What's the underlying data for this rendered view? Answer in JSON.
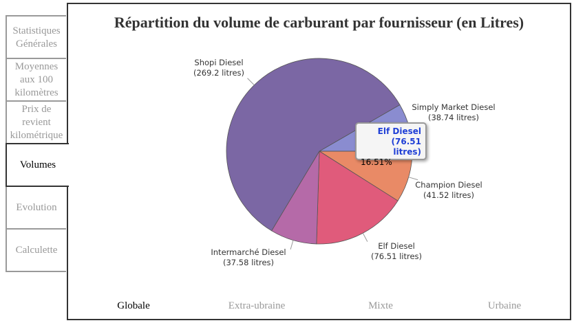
{
  "sidebar": {
    "tabs": [
      {
        "label": "Statistiques Générales"
      },
      {
        "label": "Moyennes aux 100 kilomètres"
      },
      {
        "label": "Prix de revient kilométrique"
      },
      {
        "label": "Volumes",
        "active": true
      },
      {
        "label": "Evolution"
      },
      {
        "label": "Calculette"
      }
    ]
  },
  "bottom_tabs": [
    {
      "label": "Globale",
      "active": true
    },
    {
      "label": "Extra-ubraine"
    },
    {
      "label": "Mixte"
    },
    {
      "label": "Urbaine"
    }
  ],
  "chart_data": {
    "type": "pie",
    "title": "Répartition du volume de carburant par fournisseur (en Litres)",
    "unit": "litres",
    "slices": [
      {
        "name": "Simply Market Diesel",
        "value": 38.74,
        "label": "(38.74 litres)",
        "color": "#8a8cd0"
      },
      {
        "name": "Champion Diesel",
        "value": 41.52,
        "label": "(41.52 litres)",
        "color": "#e98a66"
      },
      {
        "name": "Elf Diesel",
        "value": 76.51,
        "label": "(76.51 litres)",
        "color": "#e05b7b"
      },
      {
        "name": "Intermarché Diesel",
        "value": 37.58,
        "label": "(37.58 litres)",
        "color": "#b56aa8"
      },
      {
        "name": "Shopi Diesel",
        "value": 269.2,
        "label": "(269.2 litres)",
        "color": "#7b67a4"
      }
    ],
    "start_angle_deg": -30
  },
  "tooltip": {
    "name": "Elf Diesel",
    "value": "(76.51 litres)",
    "percent": "16.51%"
  }
}
